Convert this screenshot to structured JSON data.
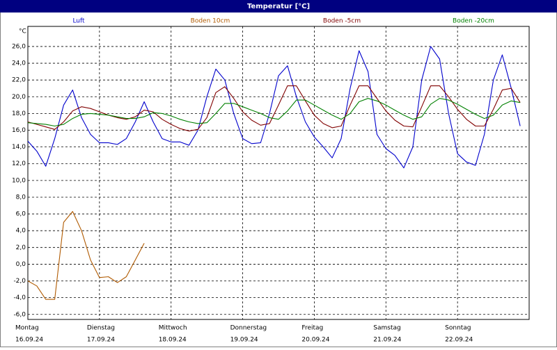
{
  "chart_data": {
    "type": "line",
    "title": "Temperatur [°C]",
    "y_unit": "°C",
    "x": [
      0,
      3,
      6,
      9,
      12,
      15,
      18,
      21,
      24,
      27,
      30,
      33,
      36,
      39,
      42,
      45,
      48,
      51,
      54,
      57,
      60,
      63,
      66,
      69,
      72,
      75,
      78,
      81,
      84,
      87,
      90,
      93,
      96,
      99,
      102,
      105,
      108,
      111,
      114,
      117,
      120,
      123,
      126,
      129,
      132,
      135,
      138,
      141,
      144,
      147,
      150,
      153,
      156,
      159,
      162,
      165
    ],
    "xlim": [
      0,
      168
    ],
    "days": [
      {
        "value": 0,
        "name": "Montag",
        "date": "16.09.24"
      },
      {
        "value": 24,
        "name": "Dienstag",
        "date": "17.09.24"
      },
      {
        "value": 48,
        "name": "Mittwoch",
        "date": "18.09.24"
      },
      {
        "value": 72,
        "name": "Donnerstag",
        "date": "19.09.24"
      },
      {
        "value": 96,
        "name": "Freitag",
        "date": "20.09.24"
      },
      {
        "value": 120,
        "name": "Samstag",
        "date": "21.09.24"
      },
      {
        "value": 144,
        "name": "Sonntag",
        "date": "22.09.24"
      }
    ],
    "ylim": [
      -6.6,
      28.4
    ],
    "yticks": [
      {
        "value": 26,
        "label": "26,0"
      },
      {
        "value": 24,
        "label": "24,0"
      },
      {
        "value": 22,
        "label": "22,0"
      },
      {
        "value": 20,
        "label": "20,0"
      },
      {
        "value": 18,
        "label": "18,0"
      },
      {
        "value": 16,
        "label": "16,0"
      },
      {
        "value": 14,
        "label": "14,0"
      },
      {
        "value": 12,
        "label": "12,0"
      },
      {
        "value": 10,
        "label": "10,0"
      },
      {
        "value": 8,
        "label": "8,0"
      },
      {
        "value": 6,
        "label": "6,0"
      },
      {
        "value": 4,
        "label": "4,0"
      },
      {
        "value": 2,
        "label": "2,0"
      },
      {
        "value": 0,
        "label": "0,0"
      },
      {
        "value": -2,
        "label": "-2,0"
      },
      {
        "value": -4,
        "label": "-4,0"
      },
      {
        "value": -6,
        "label": "-6,0"
      }
    ],
    "grid": true,
    "series": [
      {
        "name": "Luft",
        "color": "#0000cc",
        "values": [
          14.7,
          13.5,
          11.7,
          15,
          19,
          20.8,
          17.5,
          15.5,
          14.5,
          14.5,
          14.3,
          15,
          17,
          19.4,
          17,
          15,
          14.6,
          14.6,
          14.2,
          16,
          20,
          23.3,
          22,
          18,
          15,
          14.4,
          14.5,
          18,
          22.5,
          23.7,
          20,
          17,
          15.2,
          14,
          12.7,
          15,
          21,
          25.5,
          23,
          15.5,
          13.8,
          13,
          11.5,
          14,
          22,
          26,
          24.5,
          18,
          13.2,
          12.2,
          11.8,
          15.5,
          22,
          25,
          21,
          16.5
        ]
      },
      {
        "name": "Boden 10cm",
        "color": "#b05a00",
        "values": [
          -2,
          -2.6,
          -4.2,
          -4.2,
          5,
          6.3,
          4,
          0.5,
          -1.6,
          -1.5,
          -2.2,
          -1.5,
          0.5,
          2.5,
          null,
          null,
          null,
          null,
          null,
          null,
          null,
          null,
          null,
          null,
          null,
          null,
          null,
          null,
          null,
          null,
          null,
          null,
          null,
          null,
          null,
          null,
          null,
          null,
          null,
          null,
          null,
          null,
          null,
          null,
          null,
          null,
          null,
          null,
          null,
          null,
          null,
          null,
          null,
          null,
          null,
          null
        ]
      },
      {
        "name": "Boden -5cm",
        "color": "#800000",
        "values": [
          17,
          16.7,
          16.4,
          16.1,
          17,
          18.3,
          18.8,
          18.6,
          18.2,
          17.8,
          17.5,
          17.3,
          17.6,
          18.4,
          18.2,
          17.3,
          16.7,
          16.2,
          15.9,
          16.1,
          17.5,
          20.5,
          21.2,
          19.8,
          18.2,
          17.2,
          16.6,
          16.8,
          19,
          21.3,
          21.3,
          19.5,
          17.8,
          16.8,
          16.3,
          16.5,
          19,
          21.3,
          21.3,
          19.8,
          18.3,
          17.2,
          16.5,
          16.4,
          18.8,
          21.3,
          21.3,
          20,
          18.5,
          17.3,
          16.5,
          16.5,
          18.5,
          20.8,
          21,
          19.3
        ]
      },
      {
        "name": "Boden -20cm",
        "color": "#008000",
        "values": [
          16.9,
          16.8,
          16.7,
          16.5,
          16.7,
          17.4,
          17.9,
          18,
          17.9,
          17.8,
          17.6,
          17.4,
          17.4,
          17.6,
          18.1,
          18,
          17.7,
          17.3,
          17,
          16.8,
          16.9,
          18,
          19.2,
          19.2,
          18.8,
          18.4,
          18,
          17.5,
          17.3,
          18.3,
          19.6,
          19.6,
          19,
          18.4,
          17.8,
          17.3,
          18,
          19.4,
          19.8,
          19.5,
          19,
          18.4,
          17.8,
          17.3,
          17.6,
          19.1,
          19.8,
          19.6,
          19.1,
          18.5,
          17.9,
          17.4,
          17.8,
          19,
          19.5,
          19.3
        ]
      }
    ]
  }
}
